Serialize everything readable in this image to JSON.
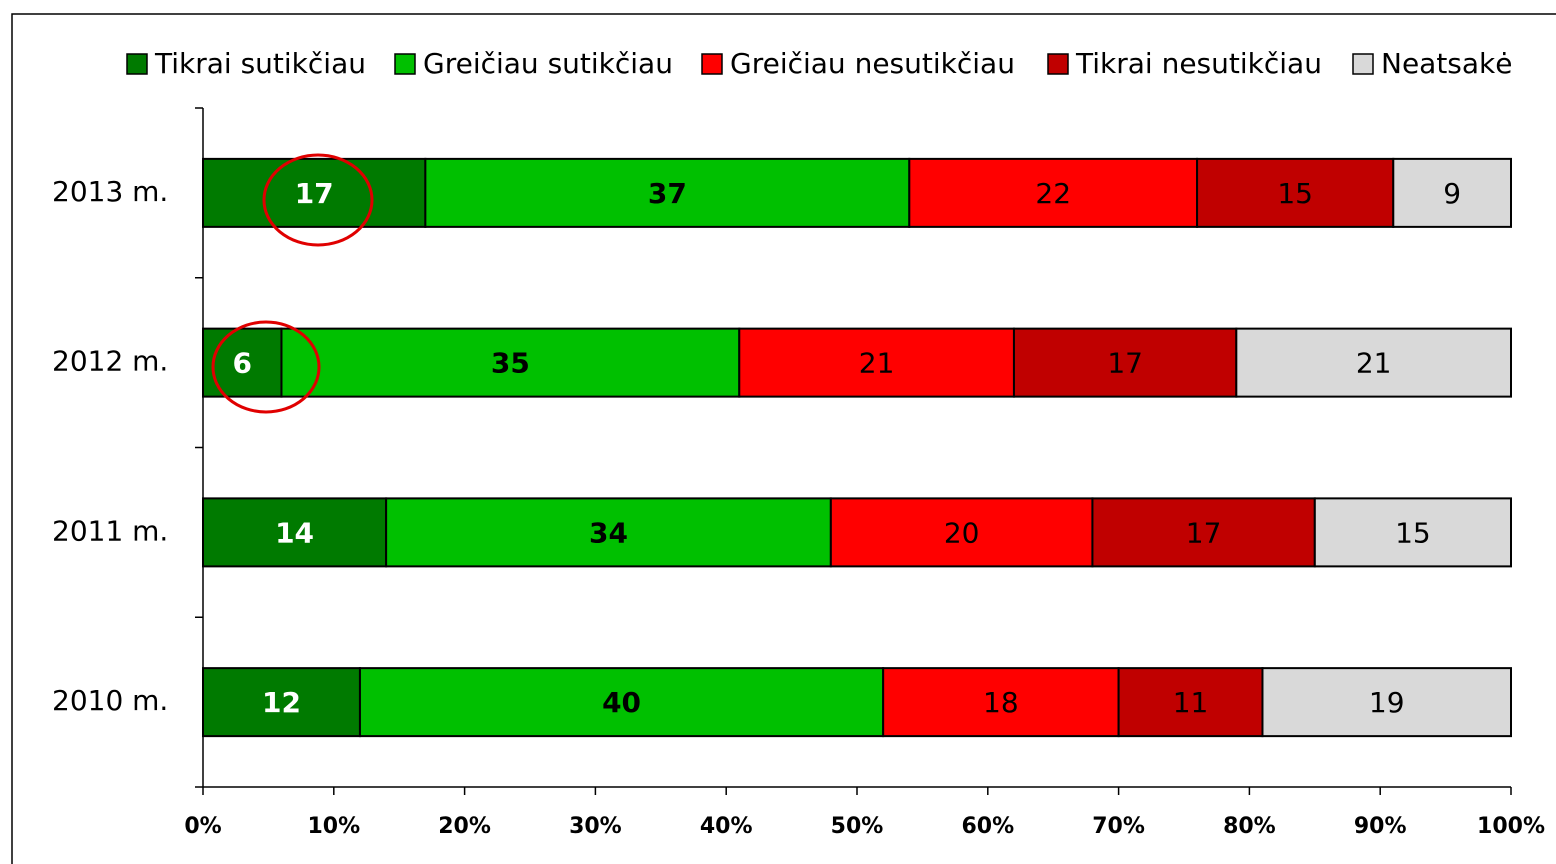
{
  "chart_data": {
    "type": "stacked_bar_horizontal",
    "categories": [
      "2013 m.",
      "2012 m.",
      "2011 m.",
      "2010 m."
    ],
    "series": [
      {
        "name": "Tikrai sutikčiau",
        "color": "#007a00",
        "values": [
          17,
          6,
          14,
          12
        ]
      },
      {
        "name": "Greičiau sutikčiau",
        "color": "#00c000",
        "values": [
          37,
          35,
          34,
          40
        ]
      },
      {
        "name": "Greičiau nesutikčiau",
        "color": "#ff0000",
        "values": [
          22,
          21,
          20,
          18
        ]
      },
      {
        "name": "Tikrai nesutikčiau",
        "color": "#c00000",
        "values": [
          15,
          17,
          17,
          11
        ]
      },
      {
        "name": "Neatsakė",
        "color": "#d9d9d9",
        "values": [
          9,
          21,
          15,
          19
        ]
      }
    ],
    "xlim": [
      0,
      100
    ],
    "xticks": [
      {
        "value": 0,
        "label": "0%"
      },
      {
        "value": 10,
        "label": "10%"
      },
      {
        "value": 20,
        "label": "20%"
      },
      {
        "value": 30,
        "label": "30%"
      },
      {
        "value": 40,
        "label": "40%"
      },
      {
        "value": 50,
        "label": "50%"
      },
      {
        "value": 60,
        "label": "60%"
      },
      {
        "value": 70,
        "label": "70%"
      },
      {
        "value": 80,
        "label": "80%"
      },
      {
        "value": 90,
        "label": "90%"
      },
      {
        "value": 100,
        "label": "100%"
      }
    ],
    "legend": "top-right"
  }
}
